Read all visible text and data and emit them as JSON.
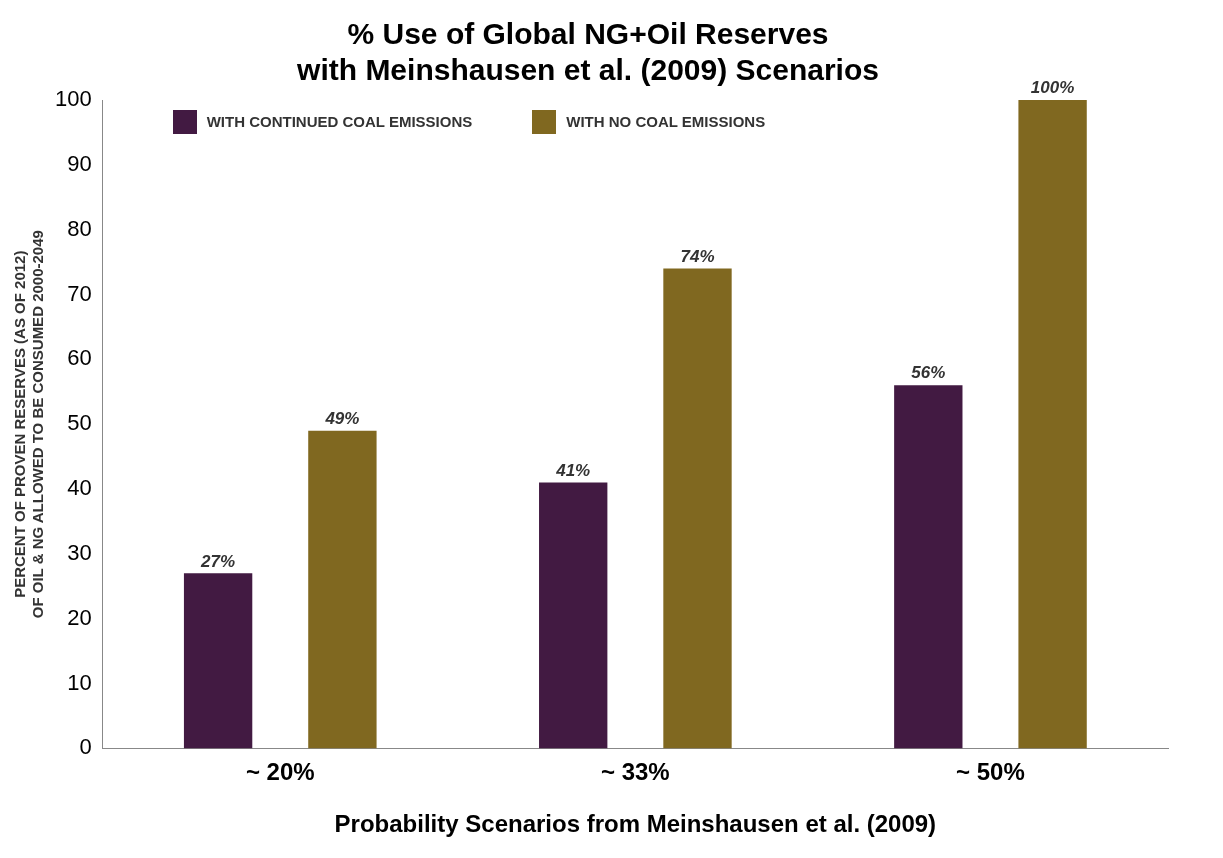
{
  "chart_data": {
    "type": "bar",
    "title": "% Use of Global NG+Oil Reserves\nwith Meinshausen et al. (2009) Scenarios",
    "xlabel": "Probability Scenarios from Meinshausen et al. (2009)",
    "ylabel": "PERCENT OF PROVEN RESERVES (AS OF 2012)\nOF OIL & NG ALLOWED TO BE CONSUMED 2000-2049",
    "categories": [
      "~ 20%",
      "~ 33%",
      "~ 50%"
    ],
    "series": [
      {
        "name": "WITH CONTINUED COAL EMISSIONS",
        "color": "#421a42",
        "values": [
          27,
          41,
          56
        ],
        "value_labels": [
          "27%",
          "41%",
          "56%"
        ]
      },
      {
        "name": "WITH NO COAL EMISSIONS",
        "color": "#806820",
        "values": [
          49,
          74,
          100
        ],
        "value_labels": [
          "49%",
          "74%",
          "100%"
        ]
      }
    ],
    "ylim": [
      0,
      100
    ],
    "yticks": [
      0,
      10,
      20,
      30,
      40,
      50,
      60,
      70,
      80,
      90,
      100
    ],
    "grid": false,
    "legend": "top left"
  }
}
